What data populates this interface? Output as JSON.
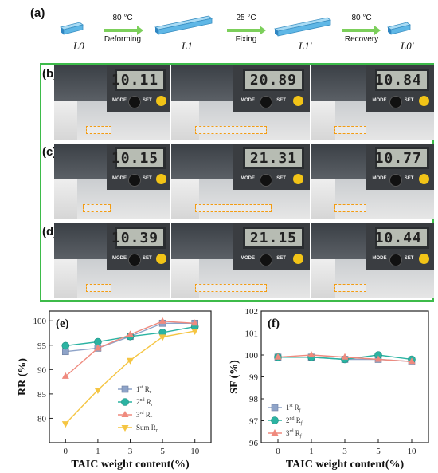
{
  "panel_a": {
    "label": "(a)",
    "states": [
      "L0",
      "L1",
      "L1'",
      "L0'"
    ],
    "steps": [
      {
        "temp": "80 °C",
        "action": "Deforming"
      },
      {
        "temp": "25 °C",
        "action": "Fixing"
      },
      {
        "temp": "80 °C",
        "action": "Recovery"
      }
    ]
  },
  "panel_b": {
    "label": "(b)",
    "readings": [
      "10.11",
      "20.89",
      "10.84"
    ]
  },
  "panel_c": {
    "label": "(c)",
    "readings": [
      "10.15",
      "21.31",
      "10.77"
    ]
  },
  "panel_d": {
    "label": "(d)",
    "readings": [
      "10.39",
      "21.15",
      "10.44"
    ]
  },
  "caliper_buttons": {
    "mode": "MODE",
    "set": "SET"
  },
  "chart_data": [
    {
      "panel": "(e)",
      "type": "line",
      "ylabel": "RR (%)",
      "xlabel": "TAIC weight content(%)",
      "categories": [
        "0",
        "1",
        "3",
        "5",
        "10"
      ],
      "ylim": [
        75,
        102
      ],
      "yticks": [
        80,
        85,
        90,
        95,
        100
      ],
      "legend_position": "right",
      "series": [
        {
          "name": "1st Rr",
          "sup": "st",
          "sub": "r",
          "base": "1",
          "color": "#8ea3c8",
          "marker": "square",
          "values": [
            93.7,
            94.4,
            96.8,
            99.5,
            99.5
          ]
        },
        {
          "name": "2nd Rr",
          "sup": "nd",
          "sub": "r",
          "base": "2",
          "color": "#2bb3a2",
          "marker": "circle",
          "values": [
            94.9,
            95.7,
            96.8,
            97.6,
            98.8
          ]
        },
        {
          "name": "3rd Rr",
          "sup": "rd",
          "sub": "r",
          "base": "3",
          "color": "#ef8a7e",
          "marker": "triangle-up",
          "values": [
            88.6,
            94.4,
            97.2,
            99.9,
            99.5
          ]
        },
        {
          "name": "Sum Rr",
          "sup": "",
          "sub": "r",
          "base": "Sum",
          "color": "#f5c542",
          "marker": "triangle-down",
          "values": [
            78.9,
            85.8,
            91.9,
            96.7,
            97.9
          ]
        }
      ]
    },
    {
      "panel": "(f)",
      "type": "line",
      "ylabel": "SF (%)",
      "xlabel": "TAIC weight content(%)",
      "categories": [
        "0",
        "1",
        "3",
        "5",
        "10"
      ],
      "ylim": [
        96,
        102
      ],
      "yticks": [
        96,
        97,
        98,
        99,
        100,
        101,
        102
      ],
      "legend_position": "bottom-left",
      "series": [
        {
          "name": "1st Rf",
          "sup": "st",
          "sub": "f",
          "base": "1",
          "color": "#8ea3c8",
          "marker": "square",
          "values": [
            99.9,
            99.9,
            99.8,
            99.8,
            99.7
          ]
        },
        {
          "name": "2nd Rf",
          "sup": "nd",
          "sub": "f",
          "base": "2",
          "color": "#2bb3a2",
          "marker": "circle",
          "values": [
            99.9,
            99.9,
            99.8,
            100.0,
            99.8
          ]
        },
        {
          "name": "3rd Rf",
          "sup": "rd",
          "sub": "f",
          "base": "3",
          "color": "#ef8a7e",
          "marker": "triangle-up",
          "values": [
            99.9,
            100.0,
            99.9,
            99.8,
            99.7
          ]
        }
      ]
    }
  ]
}
